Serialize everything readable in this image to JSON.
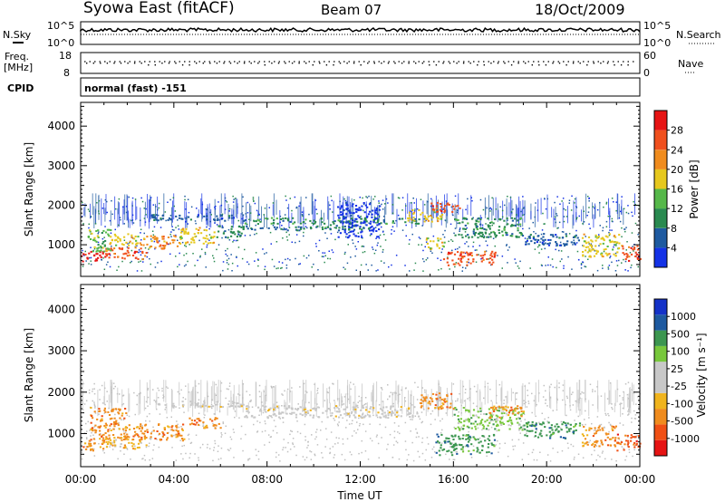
{
  "header": {
    "station": "Syowa East (fitACF)",
    "beam": "Beam 07",
    "date": "18/Oct/2009"
  },
  "top_panels": {
    "nsky_label": "N.Sky",
    "nsky_ticks": [
      "10^5",
      "10^0"
    ],
    "nsearch_label": "N.Search",
    "nsearch_ticks": [
      "10^5",
      "10^0"
    ],
    "freq_label_1": "Freq.",
    "freq_label_2": "[MHz]",
    "freq_ticks": [
      "18",
      "8"
    ],
    "nave_label": "Nave",
    "nave_ticks": [
      "60",
      "0"
    ],
    "cpid_label": "CPID",
    "cpid_text": "normal (fast) -151"
  },
  "colors": {
    "power": [
      "#1432e6",
      "#1e5aa0",
      "#2a8a50",
      "#56b84a",
      "#e6c81e",
      "#f08c1e",
      "#f0501e",
      "#e61414"
    ],
    "velocity": [
      "#e61414",
      "#f05014",
      "#f08c1e",
      "#f0b41e",
      "#c8c8c8",
      "#c8c8c8",
      "#78c83c",
      "#3c9650",
      "#1e5aa0",
      "#1432c8"
    ],
    "grey_scatter": "#c0c0c0"
  },
  "chart_data": [
    {
      "type": "heatmap",
      "name": "power",
      "ylabel": "Slant Range [km]",
      "yticks": [
        1000,
        2000,
        3000,
        4000
      ],
      "ylim": [
        200,
        4600
      ],
      "xlim": [
        0,
        24
      ],
      "colorbar_label": "Power [dB]",
      "colorbar_ticks": [
        "4",
        "8",
        "12",
        "16",
        "20",
        "24",
        "28"
      ],
      "bands": [
        {
          "t0": 0.0,
          "t1": 1.0,
          "r0": 600,
          "r1": 850,
          "level": 7
        },
        {
          "t0": 1.0,
          "t1": 2.8,
          "r0": 650,
          "r1": 950,
          "level": 6
        },
        {
          "t0": 0.3,
          "t1": 1.3,
          "r0": 850,
          "r1": 1400,
          "level": 3
        },
        {
          "t0": 1.2,
          "t1": 2.5,
          "r0": 1000,
          "r1": 1300,
          "level": 4
        },
        {
          "t0": 2.5,
          "t1": 4.2,
          "r0": 900,
          "r1": 1250,
          "level": 5
        },
        {
          "t0": 4.2,
          "t1": 5.8,
          "r0": 1050,
          "r1": 1450,
          "level": 4
        },
        {
          "t0": 5.8,
          "t1": 7.0,
          "r0": 1200,
          "r1": 1500,
          "level": 2
        },
        {
          "t0": 7.0,
          "t1": 9.5,
          "r0": 1380,
          "r1": 1480,
          "level": 1
        },
        {
          "t0": 9.5,
          "t1": 12.5,
          "r0": 1400,
          "r1": 1520,
          "level": 2
        },
        {
          "t0": 3.0,
          "t1": 7.0,
          "r0": 1620,
          "r1": 1780,
          "level": 1
        },
        {
          "t0": 7.0,
          "t1": 14.5,
          "r0": 1550,
          "r1": 1700,
          "level": 2
        },
        {
          "t0": 14.0,
          "t1": 15.5,
          "r0": 1600,
          "r1": 1900,
          "level": 4
        },
        {
          "t0": 15.0,
          "t1": 16.3,
          "r0": 1850,
          "r1": 2100,
          "level": 6
        },
        {
          "t0": 15.5,
          "t1": 17.8,
          "r0": 500,
          "r1": 850,
          "level": 6
        },
        {
          "t0": 14.8,
          "t1": 15.6,
          "r0": 900,
          "r1": 1200,
          "level": 4
        },
        {
          "t0": 16.0,
          "t1": 19.0,
          "r0": 1200,
          "r1": 1700,
          "level": 2
        },
        {
          "t0": 19.0,
          "t1": 21.5,
          "r0": 1000,
          "r1": 1300,
          "level": 1
        },
        {
          "t0": 21.5,
          "t1": 23.2,
          "r0": 700,
          "r1": 1300,
          "level": 4
        },
        {
          "t0": 23.2,
          "t1": 24.0,
          "r0": 600,
          "r1": 1000,
          "level": 6
        },
        {
          "t0": 11.0,
          "t1": 12.8,
          "r0": 1200,
          "r1": 2100,
          "level": 0
        }
      ]
    },
    {
      "type": "heatmap",
      "name": "velocity",
      "ylabel": "Slant Range [km]",
      "yticks": [
        1000,
        2000,
        3000,
        4000
      ],
      "ylim": [
        200,
        4600
      ],
      "xlim": [
        0,
        24
      ],
      "xticks": [
        "00:00",
        "04:00",
        "08:00",
        "12:00",
        "16:00",
        "20:00",
        "00:00"
      ],
      "xlabel": "Time UT",
      "colorbar_label": "Velocity [m s⁻¹]",
      "colorbar_ticks": [
        "-1000",
        "-500",
        "-100",
        "-25",
        "25",
        "100",
        "500",
        "1000"
      ],
      "bands": [
        {
          "t0": 0.0,
          "t1": 1.0,
          "r0": 600,
          "r1": 850,
          "level": 2
        },
        {
          "t0": 1.0,
          "t1": 2.8,
          "r0": 650,
          "r1": 950,
          "level": 3
        },
        {
          "t0": 0.4,
          "t1": 2.0,
          "r0": 850,
          "r1": 1650,
          "level": 2
        },
        {
          "t0": 2.0,
          "t1": 4.5,
          "r0": 850,
          "r1": 1250,
          "level": 2
        },
        {
          "t0": 4.5,
          "t1": 6.0,
          "r0": 1150,
          "r1": 1400,
          "level": 2
        },
        {
          "t0": 3.0,
          "t1": 7.0,
          "r0": 1650,
          "r1": 1800,
          "level": 4
        },
        {
          "t0": 7.0,
          "t1": 14.5,
          "r0": 1400,
          "r1": 1700,
          "level": 4
        },
        {
          "t0": 14.5,
          "t1": 16.0,
          "r0": 1600,
          "r1": 2000,
          "level": 2
        },
        {
          "t0": 15.2,
          "t1": 17.8,
          "r0": 500,
          "r1": 1000,
          "level": 7
        },
        {
          "t0": 16.0,
          "t1": 19.0,
          "r0": 1100,
          "r1": 1650,
          "level": 6
        },
        {
          "t0": 17.5,
          "t1": 19.0,
          "r0": 1400,
          "r1": 1700,
          "level": 2
        },
        {
          "t0": 19.0,
          "t1": 21.5,
          "r0": 900,
          "r1": 1300,
          "level": 7
        },
        {
          "t0": 21.5,
          "t1": 23.0,
          "r0": 700,
          "r1": 1200,
          "level": 2
        },
        {
          "t0": 23.0,
          "t1": 24.0,
          "r0": 600,
          "r1": 1000,
          "level": 1
        }
      ]
    }
  ]
}
